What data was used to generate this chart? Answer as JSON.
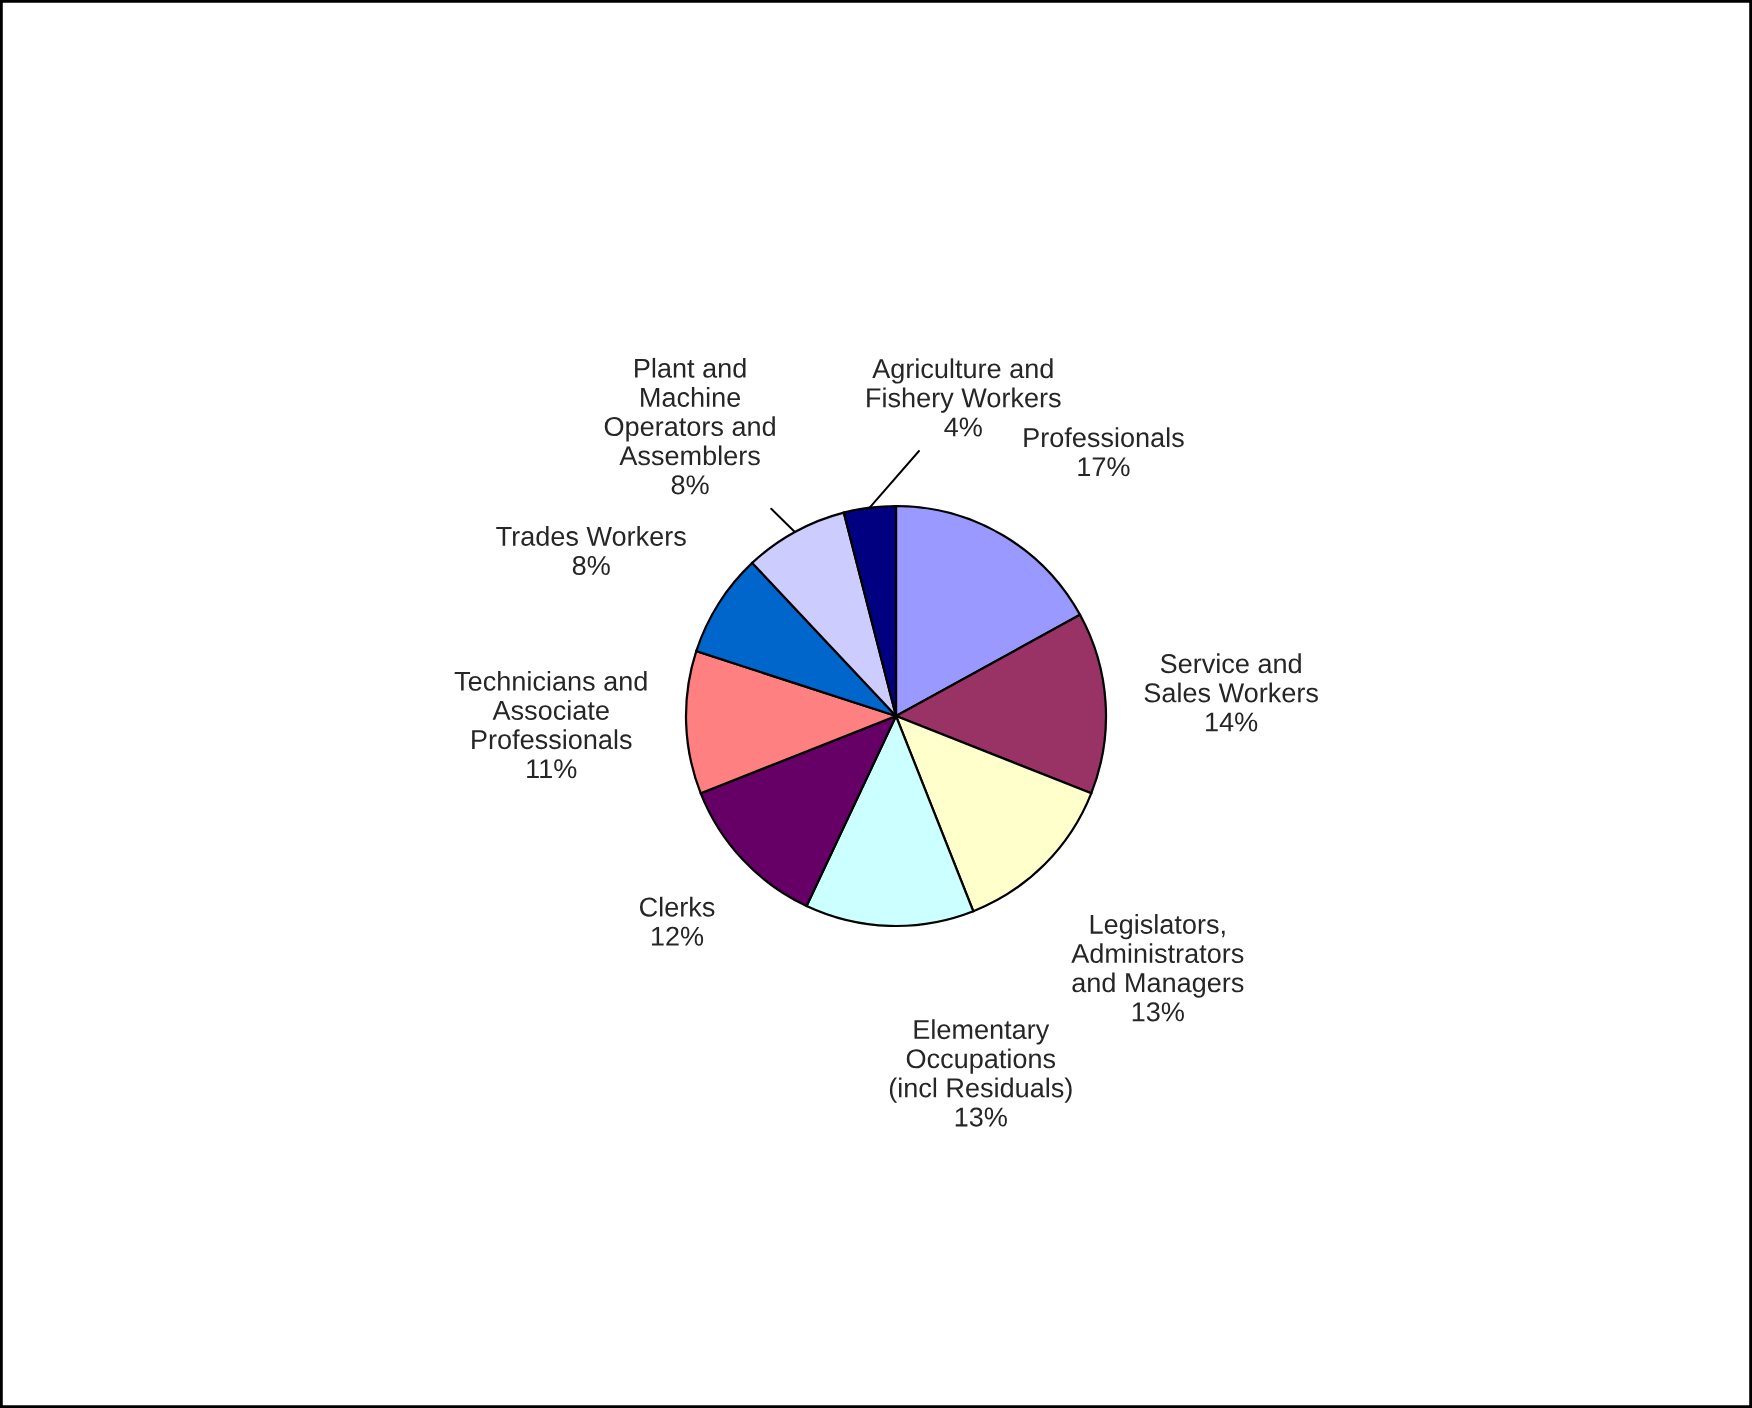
{
  "chart_data": {
    "type": "pie",
    "categories": [
      "Professionals",
      "Service and\nSales Workers",
      "Legislators,\nAdministrators\nand Managers",
      "Elementary\nOccupations\n(incl Residuals)",
      "Clerks",
      "Technicians and\nAssociate\nProfessionals",
      "Trades Workers",
      "Plant and\nMachine\nOperators and\nAssemblers",
      "Agriculture and\nFishery Workers"
    ],
    "values": [
      17,
      14,
      13,
      13,
      12,
      11,
      8,
      8,
      4
    ],
    "colors": [
      "#9999ff",
      "#993366",
      "#ffffcc",
      "#ccffff",
      "#660066",
      "#ff8080",
      "#0066cc",
      "#ccccff",
      "#000080"
    ],
    "value_labels": [
      "17%",
      "14%",
      "13%",
      "13%",
      "12%",
      "11%",
      "8%",
      "8%",
      "4%"
    ]
  }
}
